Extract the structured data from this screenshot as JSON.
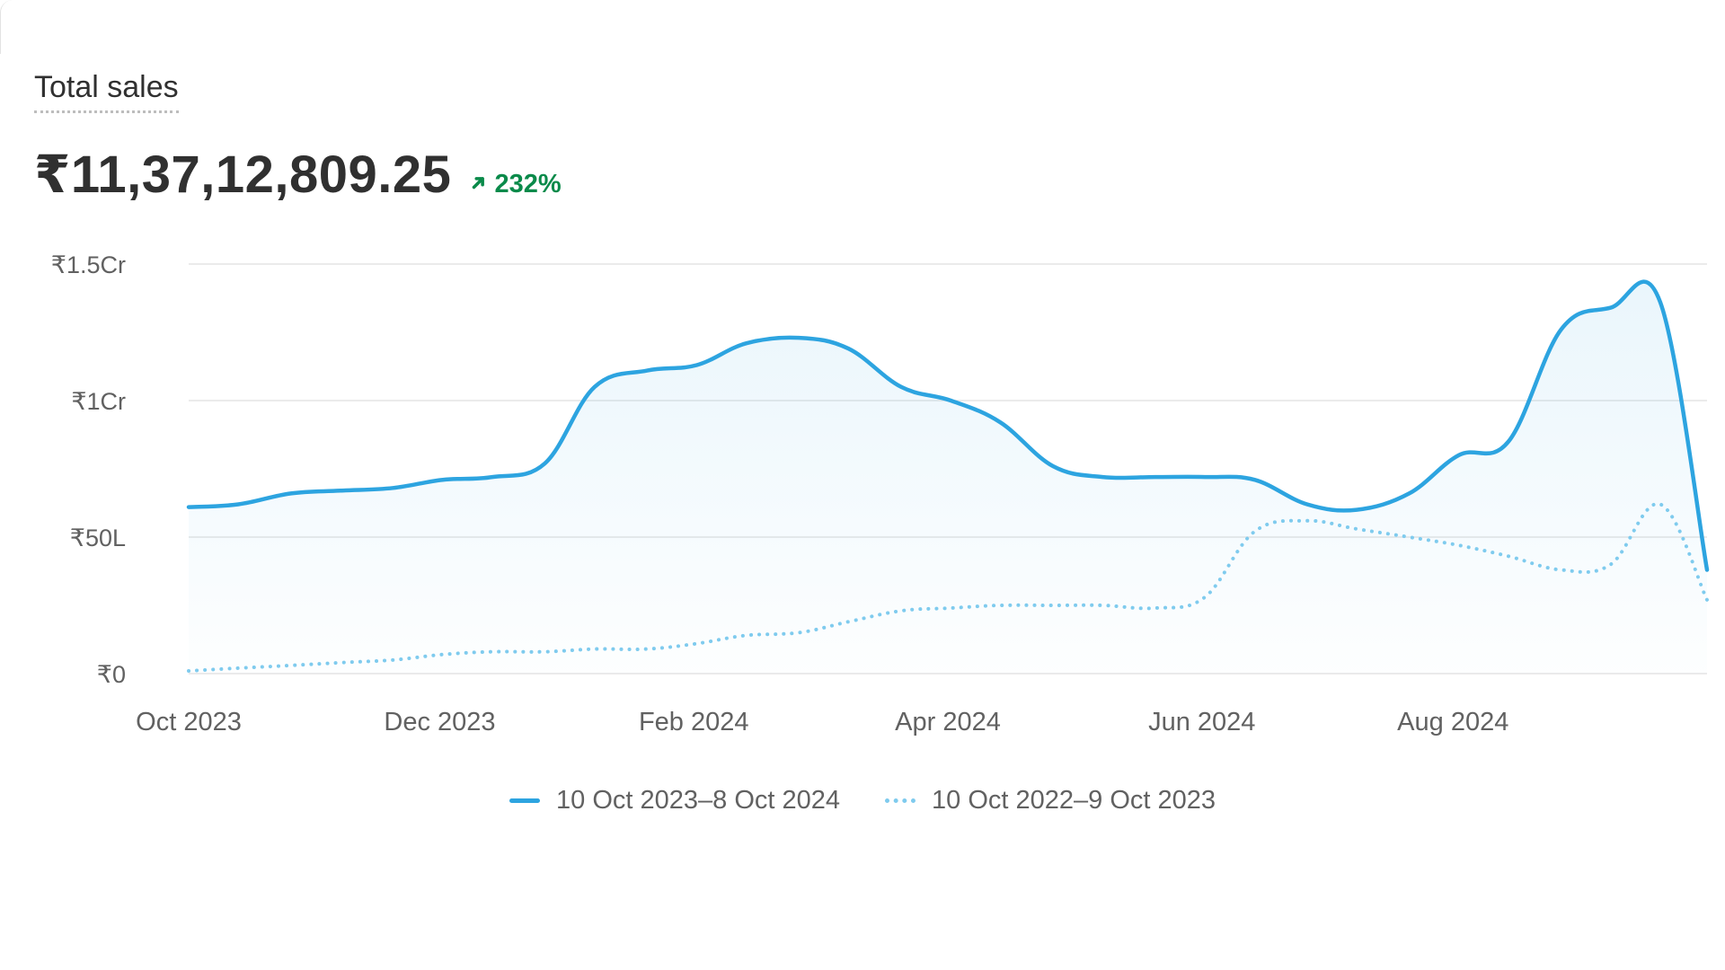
{
  "card": {
    "title": "Total sales",
    "value": "₹11,37,12,809.25",
    "change": "232%",
    "change_direction": "up"
  },
  "colors": {
    "current": "#2da4e0",
    "previous": "#7fcbee",
    "grid": "#ebebeb",
    "positive": "#0a8a4a"
  },
  "legend": {
    "current_label": "10 Oct 2023–8 Oct 2024",
    "previous_label": "10 Oct 2022–9 Oct 2023"
  },
  "chart_data": {
    "type": "area",
    "title": "Total sales",
    "xlabel": "",
    "ylabel": "",
    "unit": "INR (Lakh)",
    "ylim": [
      0,
      150
    ],
    "y_ticks": [
      {
        "value": 0,
        "label": "₹0"
      },
      {
        "value": 50,
        "label": "₹50L"
      },
      {
        "value": 100,
        "label": "₹1Cr"
      },
      {
        "value": 150,
        "label": "₹1.5Cr"
      }
    ],
    "x_ticks": [
      {
        "week": 0,
        "label": "Oct 2023"
      },
      {
        "week": 8.6,
        "label": "Dec 2023"
      },
      {
        "week": 17.3,
        "label": "Feb 2024"
      },
      {
        "week": 26,
        "label": "Apr 2024"
      },
      {
        "week": 34.7,
        "label": "Jun 2024"
      },
      {
        "week": 43.3,
        "label": "Aug 2024"
      }
    ],
    "grid": true,
    "legend_position": "bottom-center",
    "series": [
      {
        "name": "10 Oct 2023–8 Oct 2024",
        "style": "solid",
        "filled": true,
        "x": [
          0,
          1.7,
          3.5,
          5.2,
          7,
          8.7,
          10.4,
          12.2,
          13.9,
          15.7,
          17.4,
          19.1,
          20.9,
          22.6,
          24.4,
          26.1,
          27.8,
          29.6,
          31.3,
          33.1,
          34.8,
          36.5,
          38.3,
          40,
          41.8,
          43.5,
          45.2,
          47,
          48.7,
          50.4,
          52
        ],
        "values": [
          61,
          62,
          66,
          67,
          68,
          71,
          72,
          77,
          105,
          111,
          113,
          121,
          123,
          119,
          105,
          100,
          92,
          76,
          72,
          72,
          72,
          71,
          62,
          60,
          66,
          80,
          85,
          126,
          134,
          136,
          38
        ]
      },
      {
        "name": "10 Oct 2022–9 Oct 2023",
        "style": "dotted",
        "filled": false,
        "x": [
          0,
          1.7,
          3.5,
          5.2,
          7,
          8.7,
          10.4,
          12.2,
          13.9,
          15.7,
          17.4,
          19.1,
          20.9,
          22.6,
          24.4,
          26.1,
          27.8,
          29.6,
          31.3,
          33.1,
          34.8,
          36.5,
          38.3,
          40,
          41.8,
          43.5,
          45.2,
          47,
          48.7,
          50.4,
          52
        ],
        "values": [
          1,
          2,
          3,
          4,
          5,
          7,
          8,
          8,
          9,
          9,
          11,
          14,
          15,
          19,
          23,
          24,
          25,
          25,
          25,
          24,
          28,
          52,
          56,
          53,
          50,
          47,
          43,
          38,
          40,
          62,
          27
        ]
      }
    ]
  }
}
